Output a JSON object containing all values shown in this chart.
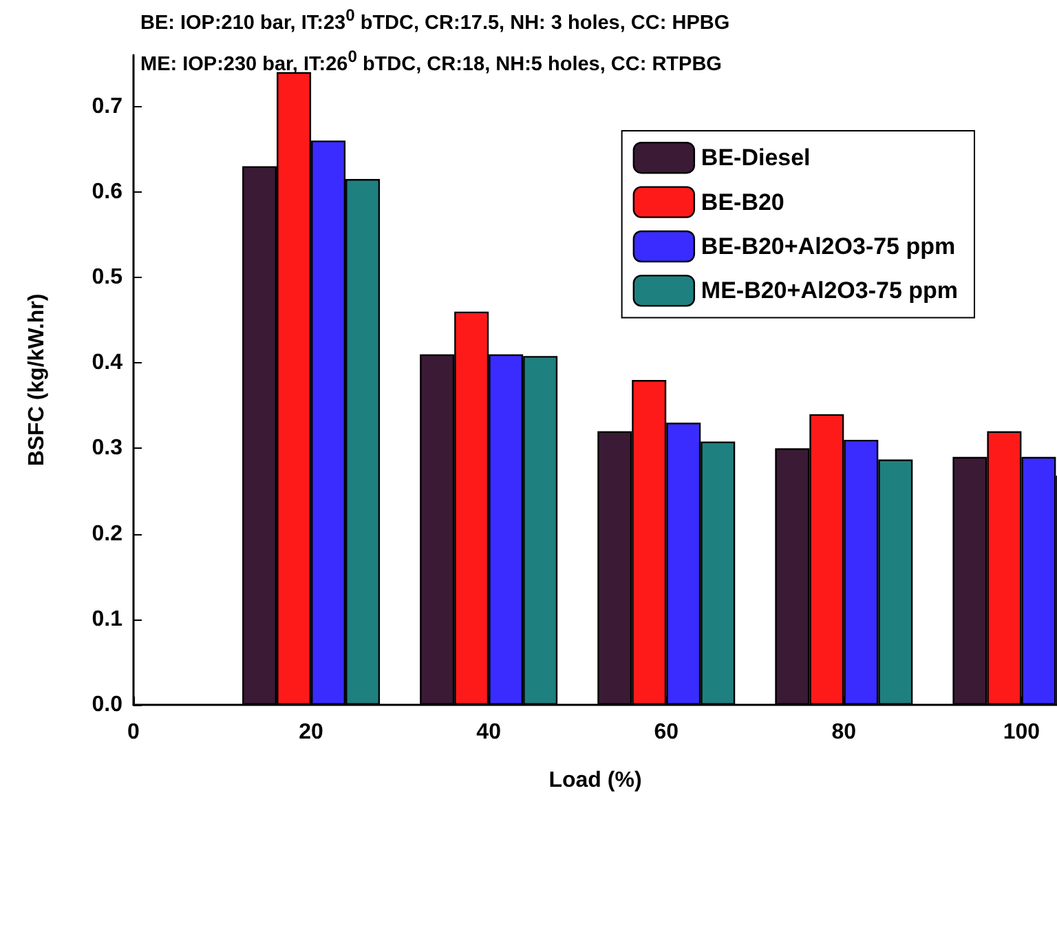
{
  "chart_data": {
    "type": "bar",
    "title": "BE: IOP:210 bar, IT:23$^{0}$ bTDC, CR:17.5, NH: 3 holes, CC: HPBG",
    "subtitle": "ME: IOP:230 bar, IT:26$^{0}$ bTDC, CR:18, NH:5 holes, CC: RTPBG",
    "xlabel": "Load (%)",
    "ylabel": "BSFC (kg/kW.hr)",
    "x": [
      20,
      40,
      60,
      80,
      100
    ],
    "series": [
      {
        "name": "BE-Diesel",
        "color": "#3b1a35",
        "values": [
          0.63,
          0.41,
          0.32,
          0.3,
          0.29
        ]
      },
      {
        "name": "BE-B20",
        "color": "#ff1a1a",
        "values": [
          0.74,
          0.46,
          0.38,
          0.34,
          0.32
        ]
      },
      {
        "name": "BE-B20+Al2O3-75 ppm",
        "color": "#3a2cff",
        "values": [
          0.66,
          0.41,
          0.33,
          0.31,
          0.29
        ]
      },
      {
        "name": "ME-B20+Al2O3-75 ppm",
        "color": "#1f8080",
        "values": [
          0.615,
          0.408,
          0.308,
          0.287,
          0.268
        ]
      }
    ],
    "xlim": [
      0,
      104
    ],
    "xticks": [
      0,
      20,
      40,
      60,
      80,
      100
    ],
    "ylim": [
      0,
      0.76
    ],
    "yticks": [
      {
        "value": 0,
        "label": "0.0"
      },
      0.1,
      0.2,
      0.3,
      0.4,
      0.5,
      0.6,
      0.7
    ],
    "grid": false,
    "legend": "top right"
  }
}
